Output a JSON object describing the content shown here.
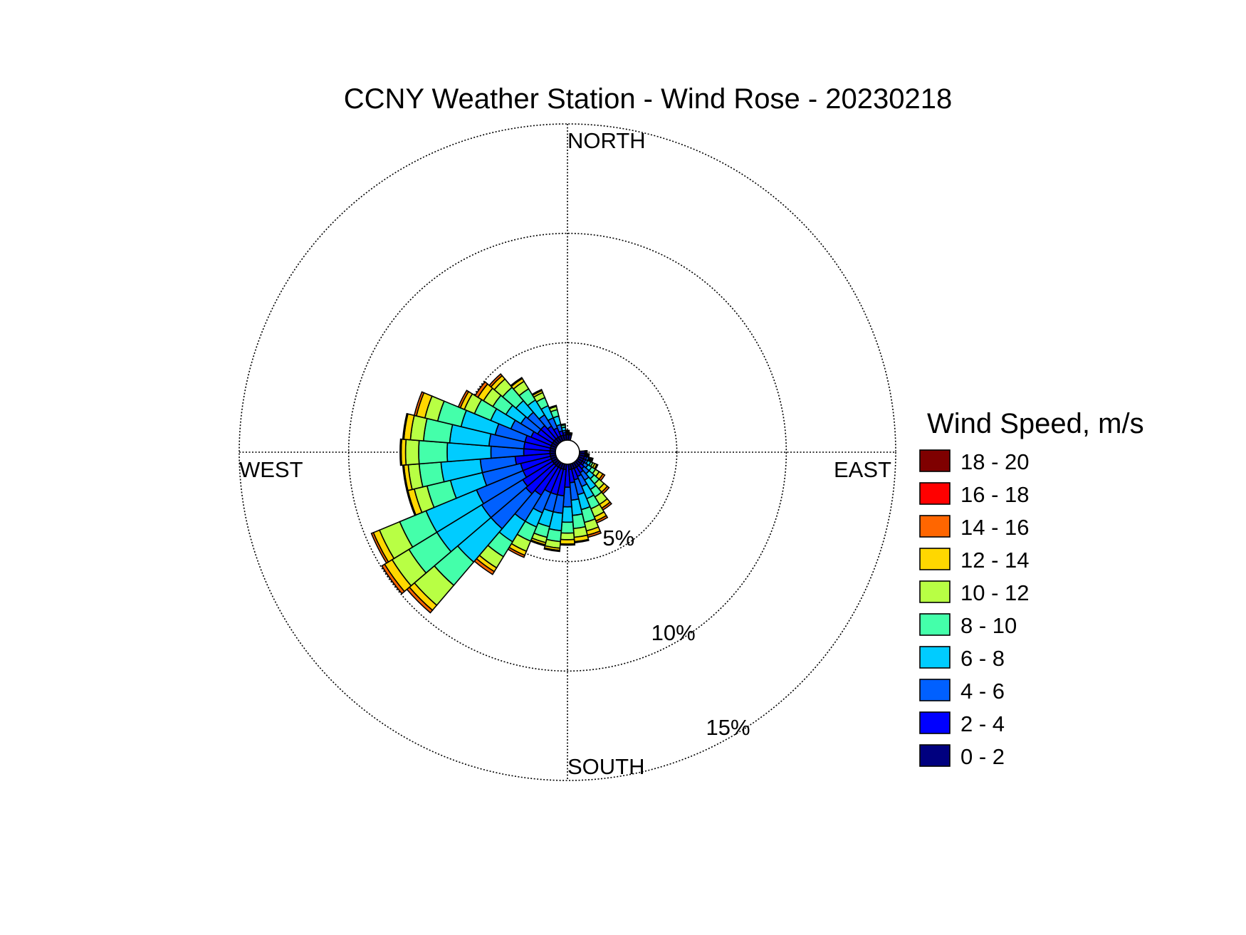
{
  "chart_data": {
    "type": "windrose",
    "title": "CCNY Weather Station - Wind Rose - 20230218",
    "directions": {
      "north": "NORTH",
      "east": "EAST",
      "south": "SOUTH",
      "west": "WEST"
    },
    "radial_axis": {
      "max_percent": 15,
      "rings": [
        5,
        10,
        15
      ],
      "ring_labels": [
        "5%",
        "10%",
        "15%"
      ],
      "label_angle_deg": 150
    },
    "legend": {
      "title": "Wind Speed, m/s",
      "placement": "right",
      "bins": [
        {
          "label": "0 - 2",
          "color": "#00007f"
        },
        {
          "label": "2 - 4",
          "color": "#0000ff"
        },
        {
          "label": "4 - 6",
          "color": "#0060ff"
        },
        {
          "label": "6 - 8",
          "color": "#00ccff"
        },
        {
          "label": "8 - 10",
          "color": "#44ffaa"
        },
        {
          "label": "10 - 12",
          "color": "#b8ff44"
        },
        {
          "label": "12 - 14",
          "color": "#ffd700"
        },
        {
          "label": "14 - 16",
          "color": "#ff6600"
        },
        {
          "label": "16 - 18",
          "color": "#ff0000"
        },
        {
          "label": "18 - 20",
          "color": "#7f0000"
        }
      ]
    },
    "sector_width_deg": 9,
    "sectors": [
      {
        "direction_deg": 180,
        "cumulative_percent": [
          0.5,
          1.6,
          2.5,
          3.2,
          3.7,
          4.0,
          4.2,
          4.25,
          4.25,
          4.25
        ]
      },
      {
        "direction_deg": 189,
        "cumulative_percent": [
          0.8,
          2.0,
          2.8,
          3.6,
          4.1,
          4.4,
          4.5,
          4.55,
          4.55,
          4.55
        ]
      },
      {
        "direction_deg": 198,
        "cumulative_percent": [
          0.8,
          2.0,
          2.8,
          3.5,
          4.0,
          4.25,
          4.35,
          4.4,
          4.4,
          4.4
        ]
      },
      {
        "direction_deg": 207,
        "cumulative_percent": [
          0.8,
          2.0,
          3.0,
          3.7,
          4.4,
          4.9,
          5.1,
          5.2,
          5.2,
          5.2
        ]
      },
      {
        "direction_deg": 216,
        "cumulative_percent": [
          0.8,
          2.3,
          3.7,
          4.8,
          5.6,
          6.2,
          6.4,
          6.55,
          6.55,
          6.55
        ]
      },
      {
        "direction_deg": 225,
        "cumulative_percent": [
          0.8,
          2.5,
          4.6,
          6.6,
          8.0,
          9.2,
          9.5,
          9.65,
          9.65,
          9.65
        ]
      },
      {
        "direction_deg": 234,
        "cumulative_percent": [
          0.8,
          2.4,
          4.6,
          7.0,
          8.5,
          9.4,
          9.8,
          9.95,
          9.95,
          9.95
        ]
      },
      {
        "direction_deg": 243,
        "cumulative_percent": [
          0.8,
          2.2,
          4.5,
          7.0,
          8.3,
          9.3,
          9.6,
          9.7,
          9.7,
          9.7
        ]
      },
      {
        "direction_deg": 252,
        "cumulative_percent": [
          0.8,
          2.2,
          4.0,
          5.5,
          6.6,
          7.2,
          7.5,
          7.55,
          7.55,
          7.55
        ]
      },
      {
        "direction_deg": 261,
        "cumulative_percent": [
          0.8,
          2.4,
          4.0,
          5.8,
          6.8,
          7.3,
          7.5,
          7.55,
          7.55,
          7.55
        ]
      },
      {
        "direction_deg": 270,
        "cumulative_percent": [
          0.8,
          2.0,
          3.5,
          5.5,
          6.8,
          7.4,
          7.6,
          7.65,
          7.65,
          7.65
        ]
      },
      {
        "direction_deg": 279,
        "cumulative_percent": [
          0.8,
          2.0,
          3.6,
          5.4,
          6.6,
          7.2,
          7.5,
          7.55,
          7.55,
          7.55
        ]
      },
      {
        "direction_deg": 288,
        "cumulative_percent": [
          0.8,
          2.0,
          3.4,
          5.0,
          6.1,
          6.7,
          7.1,
          7.2,
          7.2,
          7.2
        ]
      },
      {
        "direction_deg": 297,
        "cumulative_percent": [
          0.8,
          1.8,
          2.8,
          3.8,
          4.6,
          5.1,
          5.3,
          5.4,
          5.4,
          5.4
        ]
      },
      {
        "direction_deg": 306,
        "cumulative_percent": [
          0.8,
          1.6,
          2.5,
          3.3,
          4.0,
          4.5,
          4.8,
          4.95,
          4.95,
          4.95
        ]
      },
      {
        "direction_deg": 315,
        "cumulative_percent": [
          0.8,
          1.6,
          2.4,
          3.1,
          3.9,
          4.4,
          4.6,
          4.7,
          4.7,
          4.7
        ]
      },
      {
        "direction_deg": 324,
        "cumulative_percent": [
          0.8,
          1.4,
          2.0,
          2.8,
          3.4,
          3.8,
          3.95,
          4.0,
          4.0,
          4.0
        ]
      },
      {
        "direction_deg": 333,
        "cumulative_percent": [
          0.8,
          1.2,
          1.7,
          2.3,
          2.7,
          2.95,
          3.05,
          3.1,
          3.1,
          3.1
        ]
      },
      {
        "direction_deg": 342,
        "cumulative_percent": [
          0.8,
          1.0,
          1.3,
          1.7,
          2.0,
          2.15,
          2.2,
          2.2,
          2.2,
          2.2
        ]
      },
      {
        "direction_deg": 351,
        "cumulative_percent": [
          0.8,
          0.9,
          1.0,
          1.15,
          1.25,
          1.3,
          1.3,
          1.3,
          1.3,
          1.3
        ]
      },
      {
        "direction_deg": 0,
        "cumulative_percent": [
          0.8,
          0.85,
          0.9,
          0.95,
          1.0,
          1.0,
          1.0,
          1.0,
          1.0,
          1.0
        ]
      },
      {
        "direction_deg": 9,
        "cumulative_percent": [
          0.8,
          0.85,
          0.9,
          0.9,
          0.9,
          0.9,
          0.9,
          0.9,
          0.9,
          0.9
        ]
      },
      {
        "direction_deg": 90,
        "cumulative_percent": [
          0.8,
          0.85,
          0.9,
          0.9,
          0.9,
          0.9,
          0.9,
          0.9,
          0.9,
          0.9
        ]
      },
      {
        "direction_deg": 99,
        "cumulative_percent": [
          0.8,
          0.85,
          0.9,
          0.95,
          1.0,
          1.0,
          1.0,
          1.0,
          1.0,
          1.0
        ]
      },
      {
        "direction_deg": 108,
        "cumulative_percent": [
          0.8,
          0.9,
          1.0,
          1.05,
          1.1,
          1.15,
          1.2,
          1.2,
          1.2,
          1.2
        ]
      },
      {
        "direction_deg": 117,
        "cumulative_percent": [
          0.8,
          0.9,
          1.0,
          1.15,
          1.25,
          1.35,
          1.45,
          1.5,
          1.5,
          1.5
        ]
      },
      {
        "direction_deg": 126,
        "cumulative_percent": [
          0.8,
          0.9,
          1.1,
          1.3,
          1.5,
          1.7,
          1.9,
          2.0,
          2.0,
          2.0
        ]
      },
      {
        "direction_deg": 135,
        "cumulative_percent": [
          0.8,
          1.0,
          1.3,
          1.6,
          1.9,
          2.2,
          2.4,
          2.5,
          2.5,
          2.5
        ]
      },
      {
        "direction_deg": 144,
        "cumulative_percent": [
          0.8,
          1.1,
          1.5,
          2.0,
          2.4,
          2.8,
          3.0,
          3.1,
          3.1,
          3.1
        ]
      },
      {
        "direction_deg": 153,
        "cumulative_percent": [
          0.8,
          1.2,
          1.7,
          2.3,
          2.8,
          3.2,
          3.4,
          3.5,
          3.5,
          3.5
        ]
      },
      {
        "direction_deg": 162,
        "cumulative_percent": [
          0.8,
          1.3,
          2.0,
          2.7,
          3.3,
          3.7,
          3.9,
          4.0,
          4.0,
          4.0
        ]
      },
      {
        "direction_deg": 171,
        "cumulative_percent": [
          0.8,
          1.4,
          2.2,
          2.9,
          3.5,
          3.9,
          4.1,
          4.15,
          4.15,
          4.15
        ]
      }
    ]
  }
}
